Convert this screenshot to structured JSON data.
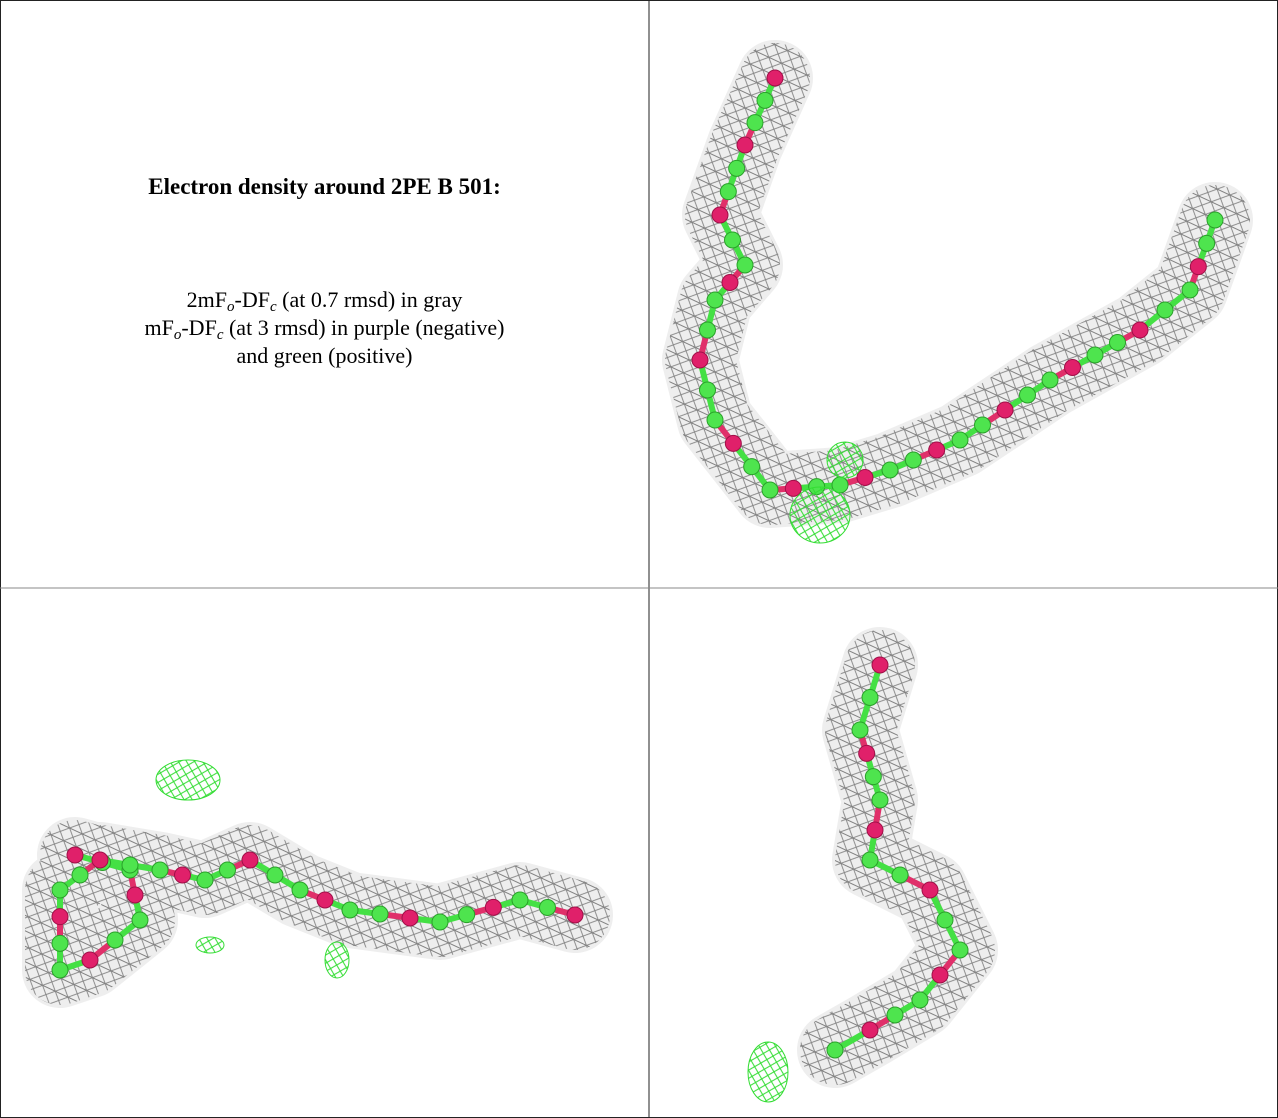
{
  "figure": {
    "title": "Electron density around 2PE B 501:",
    "legend": [
      [
        "2mF",
        "o",
        "-DF",
        "c",
        " (at 0.7 rmsd) in gray"
      ],
      [
        "mF",
        "o",
        "-DF",
        "c",
        " (at 3 rmsd) in purple (negative)"
      ],
      [
        "and green (positive)"
      ]
    ]
  }
}
